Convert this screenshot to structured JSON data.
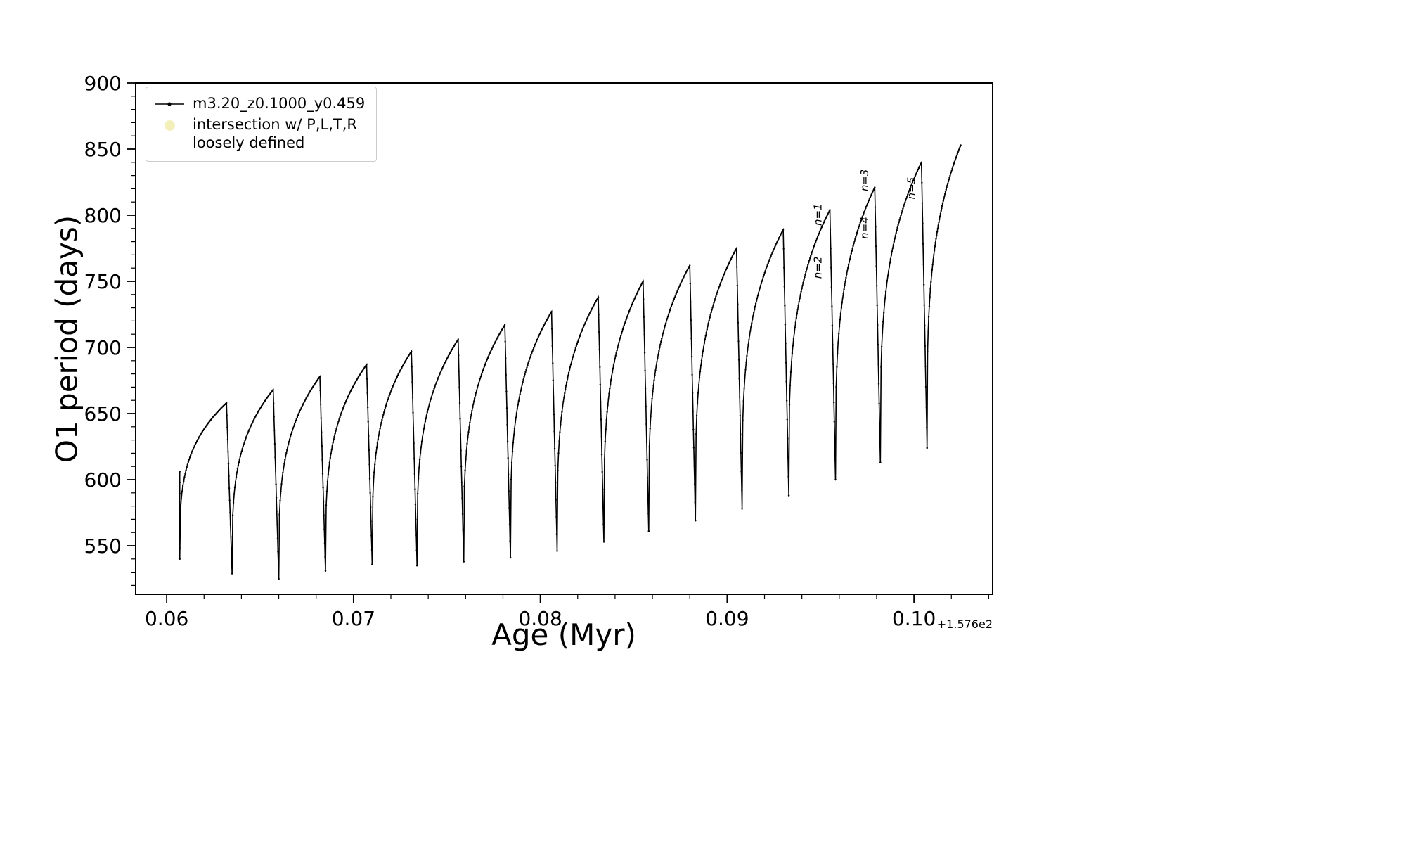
{
  "figure": {
    "background": "#ffffff"
  },
  "axes": {
    "xlabel": "Age (Myr)",
    "ylabel": "O1 period (days)",
    "offset_text": "+1.576e2",
    "x_ticks": [
      {
        "value": 0.06,
        "label": "0.06"
      },
      {
        "value": 0.07,
        "label": "0.07"
      },
      {
        "value": 0.08,
        "label": "0.08"
      },
      {
        "value": 0.09,
        "label": "0.09"
      },
      {
        "value": 0.1,
        "label": "0.10"
      }
    ],
    "y_ticks": [
      {
        "value": 550,
        "label": "550"
      },
      {
        "value": 600,
        "label": "600"
      },
      {
        "value": 650,
        "label": "650"
      },
      {
        "value": 700,
        "label": "700"
      },
      {
        "value": 750,
        "label": "750"
      },
      {
        "value": 800,
        "label": "800"
      },
      {
        "value": 850,
        "label": "850"
      },
      {
        "value": 900,
        "label": "900"
      }
    ],
    "x_minor_step": 0.002,
    "y_minor_step": 10,
    "xlim": [
      0.05834,
      0.10421
    ],
    "ylim": [
      513.3,
      900
    ],
    "spine_color": "#000000"
  },
  "legend": {
    "entries": [
      {
        "label": "m3.20_z0.1000_y0.459",
        "marker": "line-dot",
        "color": "#000000"
      },
      {
        "label_line1": "intersection w/ P,L,T,R",
        "label_line2": "loosely defined",
        "marker": "circle",
        "color": "#f1edb4"
      }
    ]
  },
  "chart_data": {
    "type": "line",
    "title": "",
    "xlabel": "Age (Myr)",
    "ylabel": "O1 period (days)",
    "x_offset": "+1.576e2",
    "xlim": [
      0.05834,
      0.10421
    ],
    "ylim": [
      513.3,
      900
    ],
    "grid": false,
    "legend_position": "upper left",
    "series": [
      {
        "name": "m3.20_z0.1000_y0.459",
        "color": "#000000",
        "style": "sawtooth-with-point-markers",
        "start_spike": {
          "x": 0.0607,
          "y_top": 606,
          "y_bottom": 540
        },
        "teeth_format": [
          "x_start",
          "x_peak",
          "y_min",
          "y_peak"
        ],
        "teeth": [
          [
            0.0607,
            0.0632,
            540,
            658
          ],
          [
            0.0635,
            0.0657,
            529,
            668
          ],
          [
            0.066,
            0.0682,
            525,
            678
          ],
          [
            0.0685,
            0.0707,
            531,
            687
          ],
          [
            0.071,
            0.0731,
            536,
            697
          ],
          [
            0.0734,
            0.0756,
            535,
            706
          ],
          [
            0.0759,
            0.0781,
            538,
            717
          ],
          [
            0.0784,
            0.0806,
            541,
            727
          ],
          [
            0.0809,
            0.0831,
            546,
            738
          ],
          [
            0.0834,
            0.0855,
            553,
            750
          ],
          [
            0.0858,
            0.088,
            561,
            762
          ],
          [
            0.0883,
            0.0905,
            569,
            775
          ],
          [
            0.0908,
            0.093,
            578,
            789
          ],
          [
            0.0933,
            0.0955,
            588,
            804
          ],
          [
            0.0958,
            0.0979,
            600,
            821
          ],
          [
            0.0982,
            0.1004,
            613,
            840
          ],
          [
            0.1007,
            0.1025,
            624,
            853
          ]
        ]
      }
    ],
    "annotations": [
      {
        "text": "n=1",
        "x": 0.09505,
        "y": 792,
        "rotation": 90
      },
      {
        "text": "n=2",
        "x": 0.09505,
        "y": 752,
        "rotation": 90
      },
      {
        "text": "n=3",
        "x": 0.09755,
        "y": 818,
        "rotation": 90
      },
      {
        "text": "n=4",
        "x": 0.09755,
        "y": 782,
        "rotation": 90
      },
      {
        "text": "n=5",
        "x": 0.10005,
        "y": 812,
        "rotation": 90
      }
    ]
  }
}
